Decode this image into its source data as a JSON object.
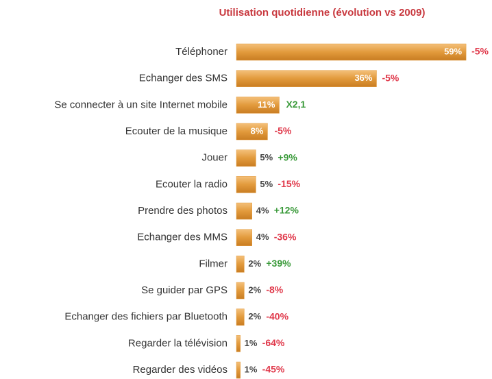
{
  "chart_data": {
    "type": "barh",
    "title": "Utilisation quotidienne (évolution vs 2009)",
    "categories": [
      "Téléphoner",
      "Echanger des SMS",
      "Se connecter à un site Internet mobile",
      "Ecouter de la musique",
      "Jouer",
      "Ecouter la radio",
      "Prendre des photos",
      "Echanger des MMS",
      "Filmer",
      "Se guider par GPS",
      "Echanger des fichiers par Bluetooth",
      "Regarder la télévision",
      "Regarder des vidéos"
    ],
    "values": [
      59,
      36,
      11,
      8,
      5,
      5,
      4,
      4,
      2,
      2,
      2,
      1,
      1
    ],
    "value_labels": [
      "59%",
      "36%",
      "11%",
      "8%",
      "5%",
      "5%",
      "4%",
      "4%",
      "2%",
      "2%",
      "2%",
      "1%",
      "1%"
    ],
    "color": "#e29a3c",
    "annotations": [
      {
        "text": "-5%",
        "color": "#e0394b"
      },
      {
        "text": "-5%",
        "color": "#e0394b"
      },
      {
        "text": "X2,1",
        "color": "#3a9a3a"
      },
      {
        "text": "-5%",
        "color": "#e0394b"
      },
      {
        "text": "+9%",
        "color": "#3a9a3a"
      },
      {
        "text": "-15%",
        "color": "#e0394b"
      },
      {
        "text": "+12%",
        "color": "#3a9a3a"
      },
      {
        "text": "-36%",
        "color": "#e0394b"
      },
      {
        "text": "+39%",
        "color": "#3a9a3a"
      },
      {
        "text": "-8%",
        "color": "#e0394b"
      },
      {
        "text": "-40%",
        "color": "#e0394b"
      },
      {
        "text": "-64%",
        "color": "#e0394b"
      },
      {
        "text": "-45%",
        "color": "#e0394b"
      }
    ]
  }
}
